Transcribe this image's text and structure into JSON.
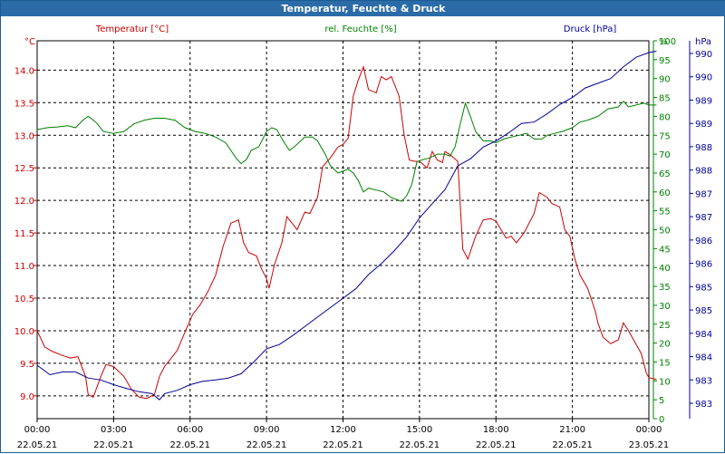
{
  "window": {
    "title": "Temperatur, Feuchte & Druck"
  },
  "colors": {
    "temperature": "#cc0000",
    "humidity": "#008000",
    "pressure": "#000099",
    "grid": "#000000",
    "titlebar": "#2b6ca8"
  },
  "chart_data": {
    "type": "line",
    "title": "Temperatur, Feuchte & Druck",
    "x_ticks": [
      {
        "time": "00:00",
        "date": "22.05.21"
      },
      {
        "time": "03:00",
        "date": "22.05.21"
      },
      {
        "time": "06:00",
        "date": "22.05.21"
      },
      {
        "time": "09:00",
        "date": "22.05.21"
      },
      {
        "time": "12:00",
        "date": "22.05.21"
      },
      {
        "time": "15:00",
        "date": "22.05.21"
      },
      {
        "time": "18:00",
        "date": "22.05.21"
      },
      {
        "time": "21:00",
        "date": "22.05.21"
      },
      {
        "time": "00:00",
        "date": "23.05.21"
      }
    ],
    "xlim_hours": [
      0,
      24
    ],
    "axes": {
      "temperature": {
        "label": "Temperatur [°C]",
        "unit": "°C",
        "ylim": [
          8.65,
          14.45
        ],
        "ticks": [
          "9.0",
          "9.5",
          "10.0",
          "10.5",
          "11.0",
          "11.5",
          "12.0",
          "12.5",
          "13.0",
          "13.5",
          "14.0"
        ]
      },
      "humidity": {
        "label": "rel. Feuchte [%]",
        "unit": "%",
        "ylim": [
          0,
          100
        ],
        "ticks": [
          "0",
          "5",
          "10",
          "15",
          "20",
          "25",
          "30",
          "35",
          "40",
          "45",
          "50",
          "55",
          "60",
          "65",
          "70",
          "75",
          "80",
          "85",
          "90",
          "95",
          "100"
        ]
      },
      "pressure": {
        "label": "Druck [hPa]",
        "unit": "hPa",
        "ylim": [
          982.5,
          990.5
        ],
        "ticks": [
          "983",
          "983",
          "984",
          "984",
          "985",
          "985",
          "986",
          "986",
          "987",
          "987",
          "988",
          "988",
          "989",
          "989",
          "990",
          "990"
        ]
      }
    },
    "series": [
      {
        "name": "Temperatur",
        "axis": "temperature",
        "points": [
          [
            0,
            10.0
          ],
          [
            0.3,
            9.75
          ],
          [
            0.6,
            9.68
          ],
          [
            1.0,
            9.62
          ],
          [
            1.3,
            9.58
          ],
          [
            1.6,
            9.6
          ],
          [
            1.9,
            9.3
          ],
          [
            2.0,
            9.02
          ],
          [
            2.2,
            8.98
          ],
          [
            2.5,
            9.3
          ],
          [
            2.7,
            9.48
          ],
          [
            3.0,
            9.45
          ],
          [
            3.4,
            9.3
          ],
          [
            3.7,
            9.1
          ],
          [
            4.0,
            8.98
          ],
          [
            4.3,
            8.96
          ],
          [
            4.6,
            9.02
          ],
          [
            4.8,
            9.3
          ],
          [
            5.0,
            9.45
          ],
          [
            5.3,
            9.6
          ],
          [
            5.5,
            9.7
          ],
          [
            5.8,
            9.98
          ],
          [
            6.1,
            10.25
          ],
          [
            6.4,
            10.4
          ],
          [
            6.7,
            10.6
          ],
          [
            7.0,
            10.85
          ],
          [
            7.3,
            11.3
          ],
          [
            7.6,
            11.65
          ],
          [
            7.9,
            11.7
          ],
          [
            8.1,
            11.35
          ],
          [
            8.3,
            11.2
          ],
          [
            8.6,
            11.15
          ],
          [
            8.8,
            10.95
          ],
          [
            9.0,
            10.8
          ],
          [
            9.1,
            10.65
          ],
          [
            9.3,
            11.0
          ],
          [
            9.6,
            11.35
          ],
          [
            9.8,
            11.75
          ],
          [
            10.0,
            11.65
          ],
          [
            10.2,
            11.55
          ],
          [
            10.5,
            11.82
          ],
          [
            10.7,
            11.8
          ],
          [
            11.0,
            12.05
          ],
          [
            11.2,
            12.52
          ],
          [
            11.5,
            12.65
          ],
          [
            11.8,
            12.82
          ],
          [
            12.0,
            12.86
          ],
          [
            12.2,
            12.95
          ],
          [
            12.4,
            13.6
          ],
          [
            12.6,
            13.85
          ],
          [
            12.8,
            14.05
          ],
          [
            13.0,
            13.7
          ],
          [
            13.3,
            13.65
          ],
          [
            13.5,
            13.9
          ],
          [
            13.7,
            13.85
          ],
          [
            13.9,
            13.9
          ],
          [
            14.2,
            13.6
          ],
          [
            14.4,
            13.0
          ],
          [
            14.6,
            12.62
          ],
          [
            14.8,
            12.6
          ],
          [
            15.0,
            12.6
          ],
          [
            15.3,
            12.5
          ],
          [
            15.5,
            12.75
          ],
          [
            15.7,
            12.62
          ],
          [
            15.9,
            12.58
          ],
          [
            16.0,
            12.75
          ],
          [
            16.2,
            12.7
          ],
          [
            16.5,
            12.6
          ],
          [
            16.7,
            11.25
          ],
          [
            16.9,
            11.1
          ],
          [
            17.2,
            11.45
          ],
          [
            17.5,
            11.7
          ],
          [
            17.8,
            11.72
          ],
          [
            18.0,
            11.68
          ],
          [
            18.2,
            11.55
          ],
          [
            18.4,
            11.42
          ],
          [
            18.6,
            11.45
          ],
          [
            18.8,
            11.35
          ],
          [
            19.1,
            11.5
          ],
          [
            19.3,
            11.65
          ],
          [
            19.5,
            11.8
          ],
          [
            19.7,
            12.12
          ],
          [
            20.0,
            12.05
          ],
          [
            20.2,
            11.95
          ],
          [
            20.5,
            11.9
          ],
          [
            20.7,
            11.55
          ],
          [
            20.9,
            11.45
          ],
          [
            21.1,
            11.1
          ],
          [
            21.3,
            10.85
          ],
          [
            21.6,
            10.65
          ],
          [
            21.9,
            10.3
          ],
          [
            22.0,
            10.12
          ],
          [
            22.2,
            9.9
          ],
          [
            22.5,
            9.8
          ],
          [
            22.8,
            9.86
          ],
          [
            23.0,
            10.12
          ],
          [
            23.2,
            10.0
          ],
          [
            23.4,
            9.86
          ],
          [
            23.7,
            9.65
          ],
          [
            23.9,
            9.35
          ],
          [
            24.0,
            9.28
          ],
          [
            24.3,
            9.25
          ]
        ]
      },
      {
        "name": "rel. Feuchte",
        "axis": "humidity",
        "points": [
          [
            0,
            76.5
          ],
          [
            0.4,
            77.0
          ],
          [
            0.8,
            77.2
          ],
          [
            1.2,
            77.5
          ],
          [
            1.5,
            77.0
          ],
          [
            1.8,
            79.0
          ],
          [
            2.0,
            80.0
          ],
          [
            2.3,
            78.5
          ],
          [
            2.6,
            76.0
          ],
          [
            3.0,
            75.5
          ],
          [
            3.4,
            76.0
          ],
          [
            3.8,
            78.0
          ],
          [
            4.2,
            79.0
          ],
          [
            4.6,
            79.5
          ],
          [
            5.0,
            79.5
          ],
          [
            5.4,
            79.0
          ],
          [
            5.8,
            77.0
          ],
          [
            6.2,
            76.0
          ],
          [
            6.6,
            75.5
          ],
          [
            7.0,
            74.5
          ],
          [
            7.4,
            73.0
          ],
          [
            7.8,
            69.0
          ],
          [
            8.0,
            67.5
          ],
          [
            8.2,
            68.5
          ],
          [
            8.4,
            71.0
          ],
          [
            8.7,
            72.0
          ],
          [
            9.0,
            76.0
          ],
          [
            9.2,
            77.0
          ],
          [
            9.4,
            76.5
          ],
          [
            9.7,
            73.0
          ],
          [
            9.9,
            71.0
          ],
          [
            10.1,
            72.0
          ],
          [
            10.5,
            74.5
          ],
          [
            10.8,
            74.5
          ],
          [
            11.0,
            73.5
          ],
          [
            11.3,
            70.0
          ],
          [
            11.5,
            67.0
          ],
          [
            11.8,
            65.0
          ],
          [
            12.2,
            66.0
          ],
          [
            12.4,
            65.0
          ],
          [
            12.6,
            63.0
          ],
          [
            12.8,
            60.0
          ],
          [
            13.0,
            61.0
          ],
          [
            13.3,
            60.5
          ],
          [
            13.6,
            60.0
          ],
          [
            13.9,
            58.5
          ],
          [
            14.1,
            58.0
          ],
          [
            14.3,
            57.5
          ],
          [
            14.5,
            59.0
          ],
          [
            14.7,
            62.0
          ],
          [
            14.9,
            68.0
          ],
          [
            15.1,
            68.5
          ],
          [
            15.4,
            69.0
          ],
          [
            15.7,
            70.0
          ],
          [
            16.0,
            70.0
          ],
          [
            16.2,
            69.5
          ],
          [
            16.4,
            72.0
          ],
          [
            16.6,
            78.0
          ],
          [
            16.8,
            83.5
          ],
          [
            17.0,
            80.0
          ],
          [
            17.2,
            76.0
          ],
          [
            17.5,
            73.5
          ],
          [
            17.8,
            73.5
          ],
          [
            18.0,
            73.0
          ],
          [
            18.3,
            74.0
          ],
          [
            18.6,
            74.5
          ],
          [
            18.9,
            75.0
          ],
          [
            19.2,
            75.5
          ],
          [
            19.5,
            74.0
          ],
          [
            19.8,
            74.0
          ],
          [
            20.0,
            75.0
          ],
          [
            20.3,
            75.5
          ],
          [
            20.6,
            76.0
          ],
          [
            21.0,
            77.0
          ],
          [
            21.3,
            78.5
          ],
          [
            21.6,
            79.0
          ],
          [
            22.0,
            80.0
          ],
          [
            22.4,
            82.0
          ],
          [
            22.8,
            82.5
          ],
          [
            23.0,
            84.0
          ],
          [
            23.2,
            82.5
          ],
          [
            23.5,
            83.0
          ],
          [
            23.8,
            83.5
          ],
          [
            24.0,
            83.0
          ],
          [
            24.3,
            83.0
          ]
        ]
      },
      {
        "name": "Druck",
        "axis": "pressure",
        "points": [
          [
            0,
            983.63
          ],
          [
            0.5,
            983.43
          ],
          [
            1.0,
            983.49
          ],
          [
            1.5,
            983.49
          ],
          [
            2.0,
            983.36
          ],
          [
            2.5,
            983.32
          ],
          [
            3.0,
            983.22
          ],
          [
            3.5,
            983.14
          ],
          [
            4.0,
            983.07
          ],
          [
            4.5,
            983.03
          ],
          [
            4.8,
            982.9
          ],
          [
            5.0,
            983.03
          ],
          [
            5.5,
            983.1
          ],
          [
            6.0,
            983.22
          ],
          [
            6.5,
            983.29
          ],
          [
            7.0,
            983.32
          ],
          [
            7.5,
            983.36
          ],
          [
            8.0,
            983.45
          ],
          [
            8.5,
            983.7
          ],
          [
            9.0,
            983.98
          ],
          [
            9.5,
            984.07
          ],
          [
            10.0,
            984.25
          ],
          [
            10.5,
            984.45
          ],
          [
            11.0,
            984.65
          ],
          [
            11.5,
            984.85
          ],
          [
            12.0,
            985.05
          ],
          [
            12.5,
            985.25
          ],
          [
            13.0,
            985.55
          ],
          [
            13.5,
            985.78
          ],
          [
            14.0,
            986.05
          ],
          [
            14.5,
            986.35
          ],
          [
            15.0,
            986.75
          ],
          [
            15.5,
            987.05
          ],
          [
            16.0,
            987.35
          ],
          [
            16.5,
            987.85
          ],
          [
            17.0,
            988.0
          ],
          [
            17.5,
            988.25
          ],
          [
            18.0,
            988.38
          ],
          [
            18.5,
            988.55
          ],
          [
            19.0,
            988.75
          ],
          [
            19.5,
            988.78
          ],
          [
            20.0,
            988.95
          ],
          [
            20.5,
            989.15
          ],
          [
            21.0,
            989.3
          ],
          [
            21.5,
            989.5
          ],
          [
            22.0,
            989.6
          ],
          [
            22.5,
            989.7
          ],
          [
            23.0,
            989.95
          ],
          [
            23.5,
            990.15
          ],
          [
            24.0,
            990.25
          ],
          [
            24.3,
            990.28
          ]
        ]
      }
    ]
  }
}
